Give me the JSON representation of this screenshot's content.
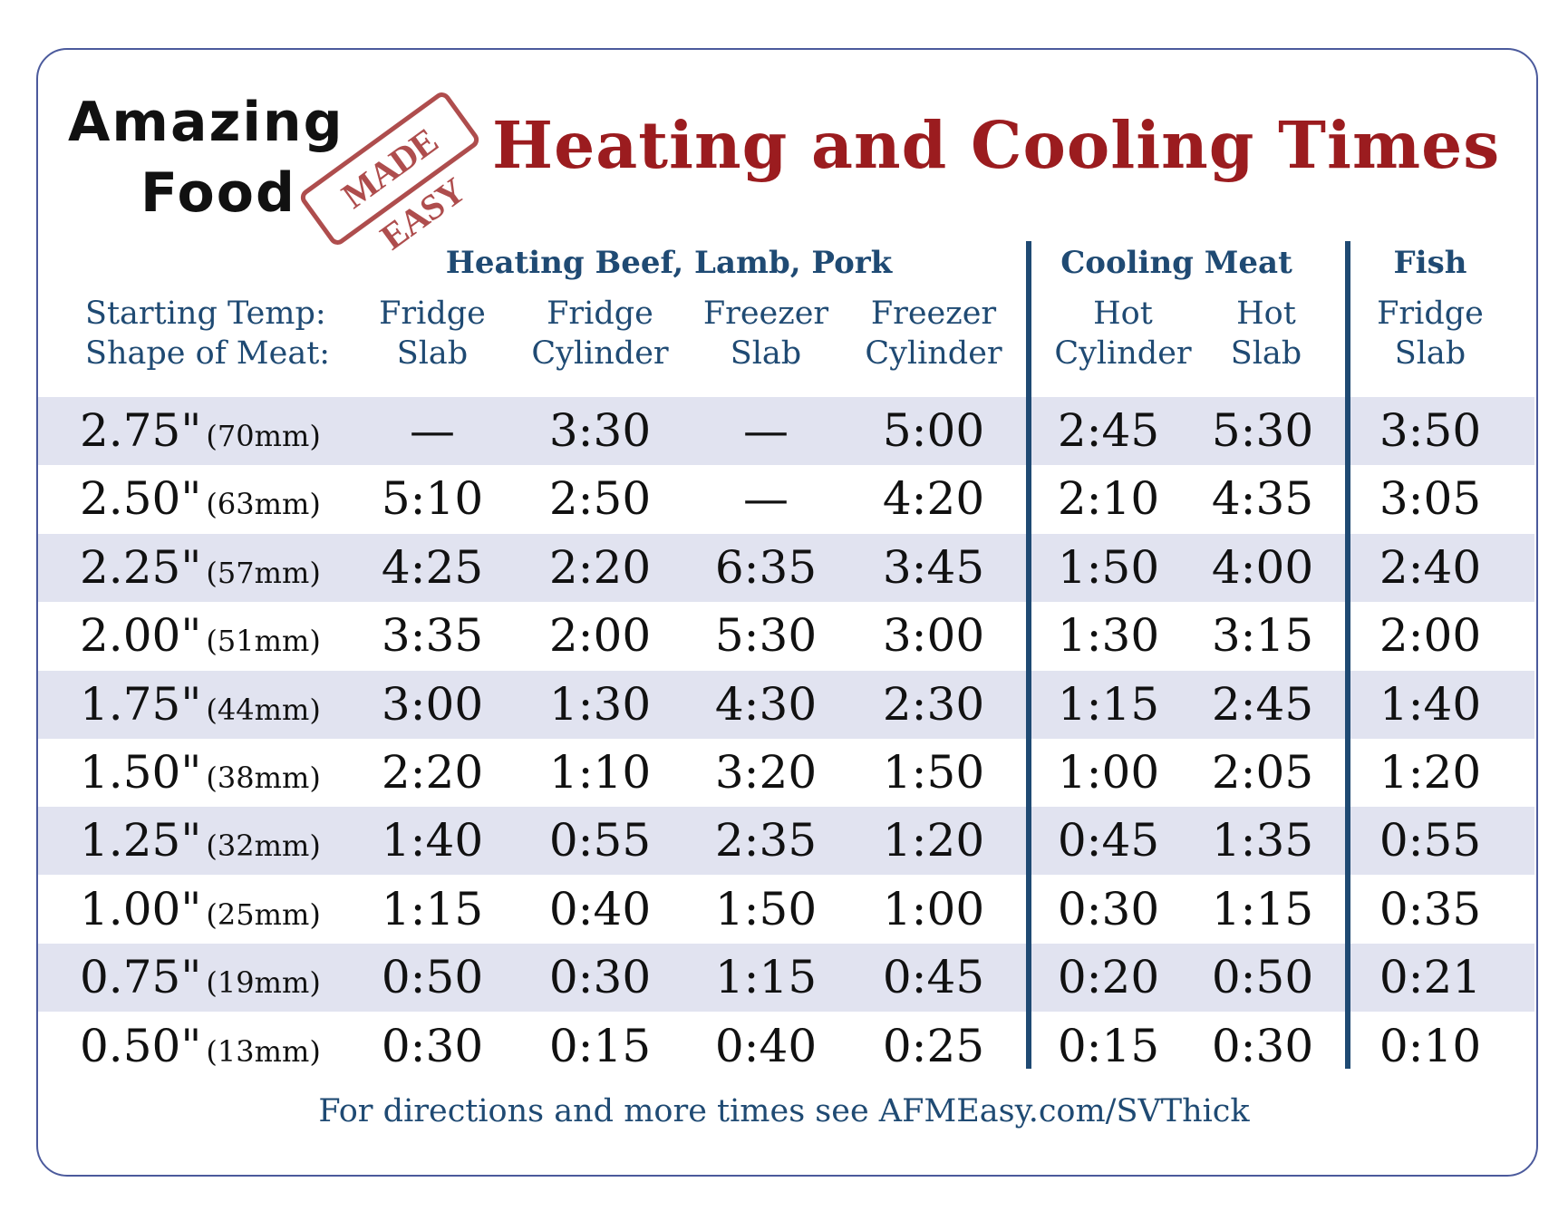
{
  "logo": {
    "line1": "Amazing",
    "line2": "Food",
    "stamp": "MADE EASY"
  },
  "title": "Heating and Cooling Times",
  "groups": {
    "heating": "Heating Beef, Lamb, Pork",
    "cooling": "Cooling Meat",
    "fish": "Fish"
  },
  "row_labels": {
    "starting_temp": "Starting Temp:",
    "shape": "Shape of Meat:"
  },
  "columns": [
    {
      "temp": "Fridge",
      "shape": "Slab"
    },
    {
      "temp": "Fridge",
      "shape": "Cylinder"
    },
    {
      "temp": "Freezer",
      "shape": "Slab"
    },
    {
      "temp": "Freezer",
      "shape": "Cylinder"
    },
    {
      "temp": "Hot",
      "shape": "Cylinder"
    },
    {
      "temp": "Hot",
      "shape": "Slab"
    },
    {
      "temp": "Fridge",
      "shape": "Slab"
    }
  ],
  "rows": [
    {
      "inch": "2.75\"",
      "mm": "(70mm)",
      "values": [
        "—",
        "3:30",
        "—",
        "5:00",
        "2:45",
        "5:30",
        "3:50"
      ]
    },
    {
      "inch": "2.50\"",
      "mm": "(63mm)",
      "values": [
        "5:10",
        "2:50",
        "—",
        "4:20",
        "2:10",
        "4:35",
        "3:05"
      ]
    },
    {
      "inch": "2.25\"",
      "mm": "(57mm)",
      "values": [
        "4:25",
        "2:20",
        "6:35",
        "3:45",
        "1:50",
        "4:00",
        "2:40"
      ]
    },
    {
      "inch": "2.00\"",
      "mm": "(51mm)",
      "values": [
        "3:35",
        "2:00",
        "5:30",
        "3:00",
        "1:30",
        "3:15",
        "2:00"
      ]
    },
    {
      "inch": "1.75\"",
      "mm": "(44mm)",
      "values": [
        "3:00",
        "1:30",
        "4:30",
        "2:30",
        "1:15",
        "2:45",
        "1:40"
      ]
    },
    {
      "inch": "1.50\"",
      "mm": "(38mm)",
      "values": [
        "2:20",
        "1:10",
        "3:20",
        "1:50",
        "1:00",
        "2:05",
        "1:20"
      ]
    },
    {
      "inch": "1.25\"",
      "mm": "(32mm)",
      "values": [
        "1:40",
        "0:55",
        "2:35",
        "1:20",
        "0:45",
        "1:35",
        "0:55"
      ]
    },
    {
      "inch": "1.00\"",
      "mm": "(25mm)",
      "values": [
        "1:15",
        "0:40",
        "1:50",
        "1:00",
        "0:30",
        "1:15",
        "0:35"
      ]
    },
    {
      "inch": "0.75\"",
      "mm": "(19mm)",
      "values": [
        "0:50",
        "0:30",
        "1:15",
        "0:45",
        "0:20",
        "0:50",
        "0:21"
      ]
    },
    {
      "inch": "0.50\"",
      "mm": "(13mm)",
      "values": [
        "0:30",
        "0:15",
        "0:40",
        "0:25",
        "0:15",
        "0:30",
        "0:10"
      ]
    }
  ],
  "footer": "For directions and more times see AFMEasy.com/SVThick",
  "colors": {
    "title": "#9b1c1f",
    "header": "#1f4a73",
    "border": "#4b5a9c",
    "band": "#e1e3f0",
    "stamp": "#a63a3a"
  }
}
